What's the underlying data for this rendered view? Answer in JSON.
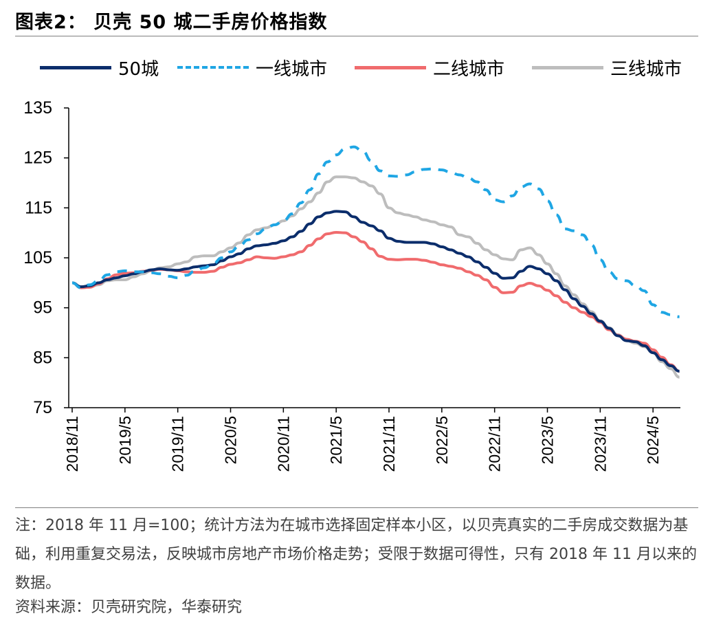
{
  "figure": {
    "title": "图表2： 贝壳 50 城二手房价格指数",
    "note": "注：2018 年 11 月=100；统计方法为在城市选择固定样本小区，以贝壳真实的二手房成交数据为基础，利用重复交易法，反映城市房地产市场价格走势；受限于数据可得性，只有 2018 年 11 月以来的数据。",
    "source": "资料来源：贝壳研究院，华泰研究"
  },
  "chart_data": {
    "type": "line",
    "title": "",
    "xlabel": "",
    "ylabel": "",
    "ylim": [
      75,
      135
    ],
    "yticks": [
      "135",
      "125",
      "115",
      "105",
      "95",
      "85",
      "75"
    ],
    "xticks": [
      "2018/11",
      "2019/5",
      "2019/11",
      "2020/5",
      "2020/11",
      "2021/5",
      "2021/11",
      "2022/5",
      "2022/11",
      "2023/5",
      "2023/11",
      "2024/5"
    ],
    "x": [
      "2018/11",
      "2018/12",
      "2019/1",
      "2019/2",
      "2019/3",
      "2019/4",
      "2019/5",
      "2019/6",
      "2019/7",
      "2019/8",
      "2019/9",
      "2019/10",
      "2019/11",
      "2019/12",
      "2020/1",
      "2020/2",
      "2020/3",
      "2020/4",
      "2020/5",
      "2020/6",
      "2020/7",
      "2020/8",
      "2020/9",
      "2020/10",
      "2020/11",
      "2020/12",
      "2021/1",
      "2021/2",
      "2021/3",
      "2021/4",
      "2021/5",
      "2021/6",
      "2021/7",
      "2021/8",
      "2021/9",
      "2021/10",
      "2021/11",
      "2021/12",
      "2022/1",
      "2022/2",
      "2022/3",
      "2022/4",
      "2022/5",
      "2022/6",
      "2022/7",
      "2022/8",
      "2022/9",
      "2022/10",
      "2022/11",
      "2022/12",
      "2023/1",
      "2023/2",
      "2023/3",
      "2023/4",
      "2023/5",
      "2023/6",
      "2023/7",
      "2023/8",
      "2023/9",
      "2023/10",
      "2023/11",
      "2023/12",
      "2024/1",
      "2024/2",
      "2024/3",
      "2024/4",
      "2024/5",
      "2024/6",
      "2024/7",
      "2024/8"
    ],
    "legend_position": "top",
    "grid": false,
    "series": [
      {
        "name": "50城",
        "color": "#0b2d6b",
        "style": "solid",
        "values": [
          100.0,
          99.2,
          99.4,
          100.0,
          100.6,
          101.0,
          101.4,
          101.8,
          102.2,
          102.6,
          102.8,
          102.6,
          102.5,
          102.8,
          103.2,
          103.4,
          103.6,
          104.4,
          105.2,
          105.8,
          106.8,
          107.4,
          107.6,
          107.9,
          108.4,
          109.2,
          110.3,
          111.8,
          113.2,
          114.0,
          114.3,
          114.2,
          113.2,
          112.1,
          111.4,
          110.4,
          108.9,
          108.3,
          108.1,
          108.1,
          108.1,
          107.8,
          107.2,
          106.6,
          105.9,
          105.2,
          104.2,
          103.1,
          101.9,
          100.9,
          101.0,
          102.3,
          103.3,
          102.8,
          101.8,
          100.4,
          98.6,
          96.8,
          95.3,
          93.8,
          92.3,
          90.9,
          89.4,
          88.4,
          88.2,
          87.4,
          86.0,
          84.6,
          83.4,
          82.3
        ]
      },
      {
        "name": "一线城市",
        "color": "#1fa6e4",
        "style": "dashed",
        "values": [
          100.0,
          99.0,
          99.6,
          100.4,
          101.6,
          102.2,
          102.4,
          102.2,
          102.2,
          102.0,
          101.8,
          101.3,
          101.0,
          101.5,
          102.4,
          103.0,
          103.8,
          105.0,
          106.2,
          107.4,
          108.6,
          109.8,
          110.8,
          111.6,
          112.4,
          113.8,
          116.0,
          118.6,
          121.8,
          124.2,
          125.6,
          126.8,
          127.2,
          126.4,
          124.4,
          122.4,
          121.4,
          121.3,
          121.6,
          122.2,
          122.7,
          122.8,
          122.6,
          122.1,
          121.6,
          121.0,
          120.2,
          118.6,
          116.6,
          116.2,
          117.4,
          119.2,
          119.8,
          118.8,
          116.4,
          113.6,
          110.8,
          110.4,
          109.6,
          107.6,
          104.6,
          102.2,
          100.8,
          100.4,
          99.4,
          98.4,
          95.6,
          94.1,
          93.6,
          93.2
        ]
      },
      {
        "name": "二线城市",
        "color": "#f06b6d",
        "style": "solid",
        "values": [
          100.0,
          99.0,
          99.1,
          99.8,
          100.8,
          101.6,
          101.9,
          102.0,
          102.3,
          102.5,
          102.7,
          102.6,
          102.4,
          102.2,
          102.1,
          102.1,
          102.3,
          103.1,
          103.7,
          104.0,
          104.6,
          105.2,
          105.0,
          104.9,
          105.2,
          105.6,
          106.2,
          107.5,
          108.8,
          109.8,
          110.1,
          110.0,
          109.2,
          108.2,
          106.8,
          105.3,
          104.7,
          104.6,
          104.7,
          104.7,
          104.5,
          104.1,
          103.6,
          103.3,
          102.9,
          102.2,
          101.5,
          100.6,
          99.1,
          98.0,
          98.1,
          99.4,
          99.9,
          99.4,
          98.5,
          97.4,
          96.1,
          95.0,
          94.1,
          93.2,
          92.1,
          90.6,
          89.5,
          88.7,
          88.3,
          87.9,
          86.6,
          85.1,
          83.6,
          82.3
        ]
      },
      {
        "name": "三线城市",
        "color": "#bdbdbd",
        "style": "solid",
        "values": [
          100.0,
          99.2,
          99.2,
          99.6,
          100.4,
          100.6,
          100.6,
          101.2,
          101.8,
          102.4,
          103.0,
          103.2,
          103.8,
          104.2,
          105.2,
          105.4,
          105.4,
          106.2,
          107.0,
          108.0,
          109.6,
          110.6,
          111.0,
          111.6,
          112.4,
          113.4,
          114.8,
          116.2,
          118.0,
          120.2,
          121.2,
          121.2,
          121.0,
          120.2,
          119.4,
          117.8,
          115.0,
          114.0,
          113.6,
          113.2,
          112.6,
          112.2,
          111.6,
          111.2,
          109.6,
          109.2,
          107.9,
          106.6,
          105.6,
          104.8,
          104.6,
          106.6,
          107.0,
          105.6,
          103.8,
          101.8,
          99.4,
          97.6,
          95.8,
          94.2,
          92.4,
          91.0,
          89.6,
          88.4,
          87.9,
          87.2,
          86.0,
          84.2,
          82.8,
          81.1
        ]
      }
    ]
  }
}
